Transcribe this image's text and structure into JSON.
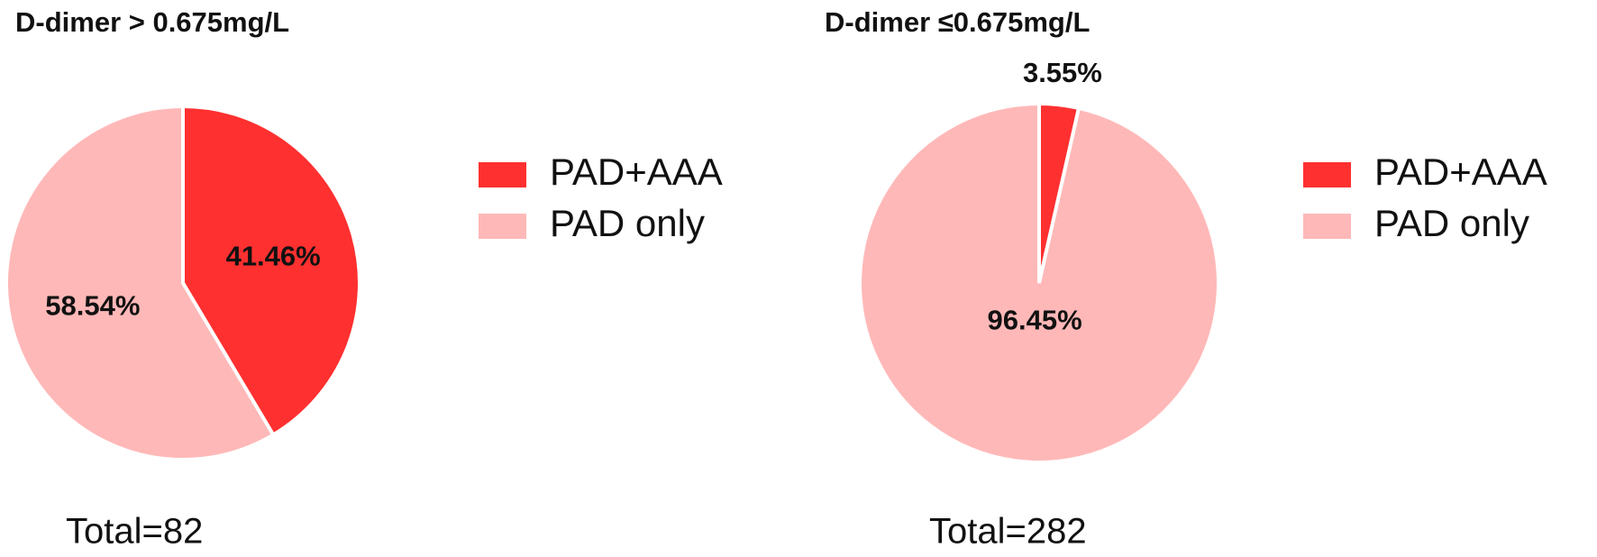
{
  "chart_data": [
    {
      "type": "pie",
      "title": "D-dimer > 0.675mg/L",
      "categories": [
        "PAD+AAA",
        "PAD only"
      ],
      "values": [
        41.46,
        58.54
      ],
      "value_labels": [
        "41.46%",
        "58.54%"
      ],
      "colors": [
        "#ff3030",
        "#ffb8b8"
      ],
      "legend": "right",
      "annotation": "Total=82"
    },
    {
      "type": "pie",
      "title": "D-dimer ≤0.675mg/L",
      "categories": [
        "PAD+AAA",
        "PAD only"
      ],
      "values": [
        3.55,
        96.45
      ],
      "value_labels": [
        "3.55%",
        "96.45%"
      ],
      "colors": [
        "#ff3030",
        "#ffb8b8"
      ],
      "legend": "right",
      "annotation": "Total=282"
    }
  ]
}
